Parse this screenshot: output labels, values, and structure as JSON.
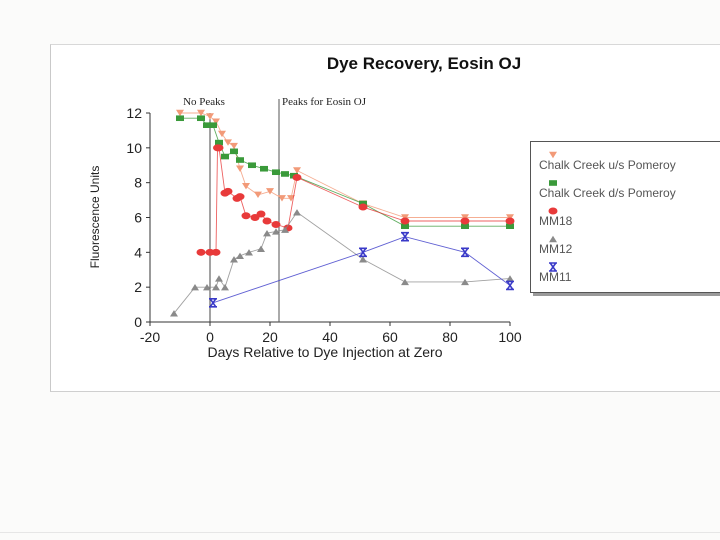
{
  "chart_data": {
    "type": "line",
    "title": "Dye Recovery, Eosin OJ",
    "xlabel": "Days Relative to Dye Injection at Zero",
    "ylabel": "Fluorescence Units",
    "xlim": [
      -20,
      100
    ],
    "ylim": [
      0,
      12
    ],
    "xticks": [
      -20,
      0,
      20,
      40,
      60,
      80,
      100
    ],
    "yticks": [
      0,
      2,
      4,
      6,
      8,
      10,
      12
    ],
    "xtick_labels": [
      "-20",
      "0",
      "20",
      "40",
      "60",
      "80",
      "100"
    ],
    "ytick_labels": [
      "0",
      "2",
      "4",
      "6",
      "8",
      "10",
      "12"
    ],
    "regions": [
      {
        "label": "No Peaks",
        "from": -20,
        "to": 23
      },
      {
        "label": "Peaks  for  Eosin OJ",
        "from": 23,
        "to": 100
      }
    ],
    "divider_x": 23,
    "series": [
      {
        "name": "Chalk Creek u/s Pomeroy",
        "legend_label": "Chalk Creek u/s Pomeroy",
        "marker": "triangle-down",
        "color": "#f29a78",
        "points": [
          [
            -10,
            12
          ],
          [
            -3,
            12
          ],
          [
            0,
            11.8
          ],
          [
            2,
            11.5
          ],
          [
            4,
            10.8
          ],
          [
            6,
            10.3
          ],
          [
            8,
            10.1
          ],
          [
            10,
            8.8
          ],
          [
            12,
            7.8
          ],
          [
            16,
            7.3
          ],
          [
            20,
            7.5
          ],
          [
            24,
            7.1
          ],
          [
            27,
            7.1
          ],
          [
            29,
            8.7
          ],
          [
            51,
            6.8
          ],
          [
            65,
            6
          ],
          [
            85,
            6
          ],
          [
            100,
            6
          ]
        ]
      },
      {
        "name": "Chalk Creek d/s Pomeroy",
        "legend_label": "Chalk Creek d/s Pomeroy",
        "marker": "square",
        "color": "#3a9a3a",
        "points": [
          [
            -10,
            11.7
          ],
          [
            -3,
            11.7
          ],
          [
            -1,
            11.3
          ],
          [
            1,
            11.3
          ],
          [
            3,
            10.3
          ],
          [
            5,
            9.5
          ],
          [
            8,
            9.8
          ],
          [
            10,
            9.3
          ],
          [
            14,
            9
          ],
          [
            18,
            8.8
          ],
          [
            22,
            8.6
          ],
          [
            25,
            8.5
          ],
          [
            28,
            8.4
          ],
          [
            51,
            6.8
          ],
          [
            65,
            5.5
          ],
          [
            85,
            5.5
          ],
          [
            100,
            5.5
          ]
        ]
      },
      {
        "name": "MM18",
        "legend_label": "MM18",
        "marker": "circle",
        "color": "#e83a3a",
        "points": [
          [
            -3,
            4
          ],
          [
            0,
            4
          ],
          [
            2,
            4
          ],
          [
            2.5,
            10
          ],
          [
            3,
            10
          ],
          [
            5,
            7.4
          ],
          [
            6,
            7.5
          ],
          [
            9,
            7.1
          ],
          [
            10,
            7.2
          ],
          [
            12,
            6.1
          ],
          [
            15,
            6
          ],
          [
            17,
            6.2
          ],
          [
            19,
            5.8
          ],
          [
            22,
            5.6
          ],
          [
            26,
            5.4
          ],
          [
            29,
            8.3
          ],
          [
            51,
            6.6
          ],
          [
            65,
            5.8
          ],
          [
            85,
            5.8
          ],
          [
            100,
            5.8
          ]
        ]
      },
      {
        "name": "MM12",
        "legend_label": "MM12",
        "marker": "triangle-up",
        "color": "#8a8a8a",
        "points": [
          [
            -12,
            0.5
          ],
          [
            -5,
            2
          ],
          [
            -1,
            2
          ],
          [
            2,
            2
          ],
          [
            3,
            2.5
          ],
          [
            5,
            2
          ],
          [
            8,
            3.6
          ],
          [
            10,
            3.8
          ],
          [
            13,
            4
          ],
          [
            17,
            4.2
          ],
          [
            19,
            5.1
          ],
          [
            22,
            5.2
          ],
          [
            25,
            5.3
          ],
          [
            29,
            6.3
          ],
          [
            51,
            3.6
          ],
          [
            65,
            2.3
          ],
          [
            85,
            2.3
          ],
          [
            100,
            2.5
          ]
        ]
      },
      {
        "name": "MM11",
        "legend_label": "MM11",
        "marker": "x-bar",
        "color": "#3a3ac8",
        "points": [
          [
            1,
            1.1
          ],
          [
            51,
            4
          ],
          [
            65,
            4.9
          ],
          [
            85,
            4
          ],
          [
            100,
            2.1
          ]
        ]
      }
    ]
  }
}
